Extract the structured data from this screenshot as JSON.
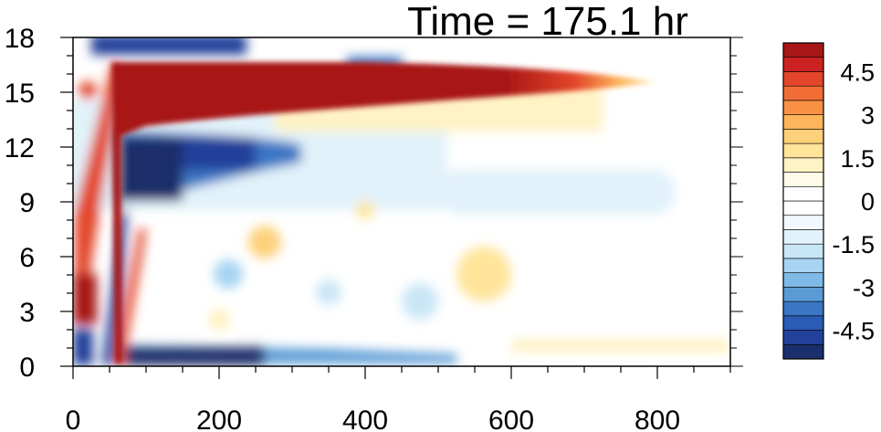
{
  "chart_data": {
    "type": "heatmap",
    "title": "Time = 175.1 hr",
    "xlabel": "",
    "ylabel": "",
    "xlim": [
      0,
      900
    ],
    "ylim": [
      0,
      18
    ],
    "x_ticks": [
      0,
      200,
      400,
      600,
      800
    ],
    "x_tick_labels": [
      "0",
      "200",
      "400",
      "600",
      "800"
    ],
    "y_ticks": [
      0,
      3,
      6,
      9,
      12,
      15,
      18
    ],
    "y_tick_labels": [
      "0",
      "3",
      "6",
      "9",
      "12",
      "15",
      "18"
    ],
    "grid": false,
    "legend": "colorbar-right",
    "colorbar": {
      "levels": [
        -5.5,
        -5,
        -4.5,
        -4,
        -3.5,
        -3,
        -2.5,
        -2,
        -1.5,
        -1,
        -0.5,
        0,
        0.5,
        1,
        1.5,
        2,
        2.5,
        3,
        3.5,
        4,
        4.5,
        5,
        5.5
      ],
      "tick_values": [
        4.5,
        3,
        1.5,
        0,
        -1.5,
        -3,
        -4.5
      ],
      "tick_labels": [
        "4.5",
        "3",
        "1.5",
        "0",
        "-1.5",
        "-3",
        "-4.5"
      ],
      "colors": [
        "#1a2f6b",
        "#22419a",
        "#2a5bb5",
        "#3a76c4",
        "#5a9bd5",
        "#7fb9e6",
        "#a6d4f2",
        "#c9e6f6",
        "#e2f2fa",
        "#f2f9fc",
        "#ffffff",
        "#ffffff",
        "#fffbe8",
        "#fff2c4",
        "#ffe49a",
        "#fdd07a",
        "#fdb45a",
        "#f99145",
        "#f16d35",
        "#e3462a",
        "#cd2222",
        "#a81616"
      ]
    },
    "features": [
      {
        "name": "upper positive band",
        "x": [
          60,
          720
        ],
        "y": [
          13.5,
          16.8
        ],
        "value": 5.5
      },
      {
        "name": "negative band below",
        "x": [
          60,
          330
        ],
        "y": [
          9.5,
          13.2
        ],
        "value": -4.5
      },
      {
        "name": "surface negative band",
        "x": [
          60,
          330
        ],
        "y": [
          0.1,
          1.2
        ],
        "value": -4.5
      },
      {
        "name": "left positive column",
        "x": [
          0,
          55
        ],
        "y": [
          1.5,
          12
        ],
        "value": 4.5
      },
      {
        "name": "upper negative patch",
        "x": [
          90,
          250
        ],
        "y": [
          16.8,
          18
        ],
        "value": -4.5
      }
    ]
  }
}
